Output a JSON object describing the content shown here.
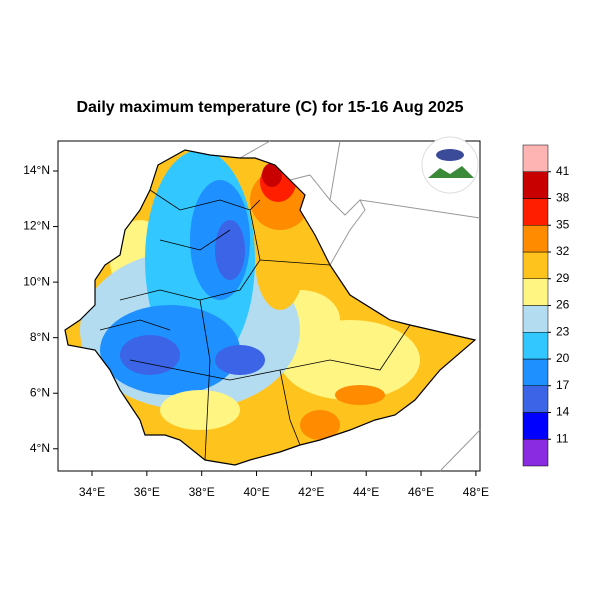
{
  "map": {
    "title": "Daily maximum temperature (C) for 15-16 Aug 2025",
    "xlim": [
      32.76,
      48.15
    ],
    "ylim": [
      3.2,
      15.08
    ],
    "xticks": [
      {
        "value": 34,
        "label": "34°E"
      },
      {
        "value": 36,
        "label": "36°E"
      },
      {
        "value": 38,
        "label": "38°E"
      },
      {
        "value": 40,
        "label": "40°E"
      },
      {
        "value": 42,
        "label": "42°E"
      },
      {
        "value": 44,
        "label": "44°E"
      },
      {
        "value": 46,
        "label": "46°E"
      },
      {
        "value": 48,
        "label": "48°E"
      }
    ],
    "yticks": [
      {
        "value": 4,
        "label": "4°N"
      },
      {
        "value": 6,
        "label": "6°N"
      },
      {
        "value": 8,
        "label": "8°N"
      },
      {
        "value": 10,
        "label": "10°N"
      },
      {
        "value": 12,
        "label": "12°N"
      },
      {
        "value": 14,
        "label": "14°N"
      }
    ],
    "colorbar": {
      "levels": [
        11,
        14,
        17,
        20,
        23,
        26,
        29,
        32,
        35,
        38,
        41
      ],
      "colors": [
        "#8a2be2",
        "#0000ff",
        "#3c64e6",
        "#1e90ff",
        "#32c8ff",
        "#b4dcf0",
        "#fff582",
        "#ffc31e",
        "#ff8c00",
        "#ff1e00",
        "#c80000",
        "#ffb4b4"
      ]
    }
  }
}
